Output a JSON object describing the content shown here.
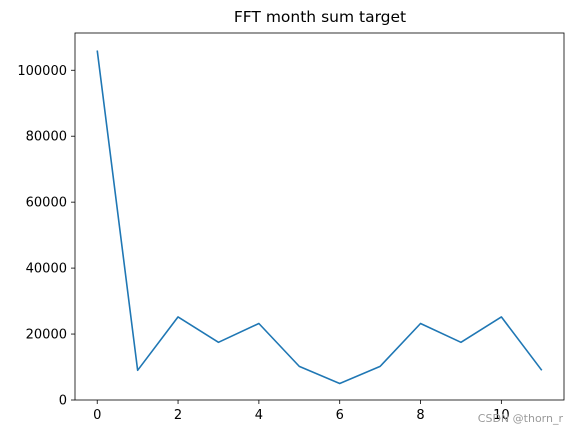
{
  "chart_data": {
    "type": "line",
    "title": "FFT month sum target",
    "xlabel": "",
    "ylabel": "",
    "x": [
      0,
      1,
      2,
      3,
      4,
      5,
      6,
      7,
      8,
      9,
      10,
      11
    ],
    "series": [
      {
        "values": [
          106000,
          9000,
          25200,
          17500,
          23200,
          10200,
          5000,
          10200,
          23200,
          17500,
          25200,
          9000
        ],
        "color": "#1f77b4"
      }
    ],
    "xlim": [
      -0.55,
      11.55
    ],
    "ylim": [
      0,
      111300
    ],
    "xticks": [
      0,
      2,
      4,
      6,
      8,
      10
    ],
    "xtick_labels": [
      "0",
      "2",
      "4",
      "6",
      "8",
      "10"
    ],
    "yticks": [
      0,
      20000,
      40000,
      60000,
      80000,
      100000
    ],
    "ytick_labels": [
      "0",
      "20000",
      "40000",
      "60000",
      "80000",
      "100000"
    ],
    "grid": false
  },
  "watermark": "CSDN @thorn_r"
}
